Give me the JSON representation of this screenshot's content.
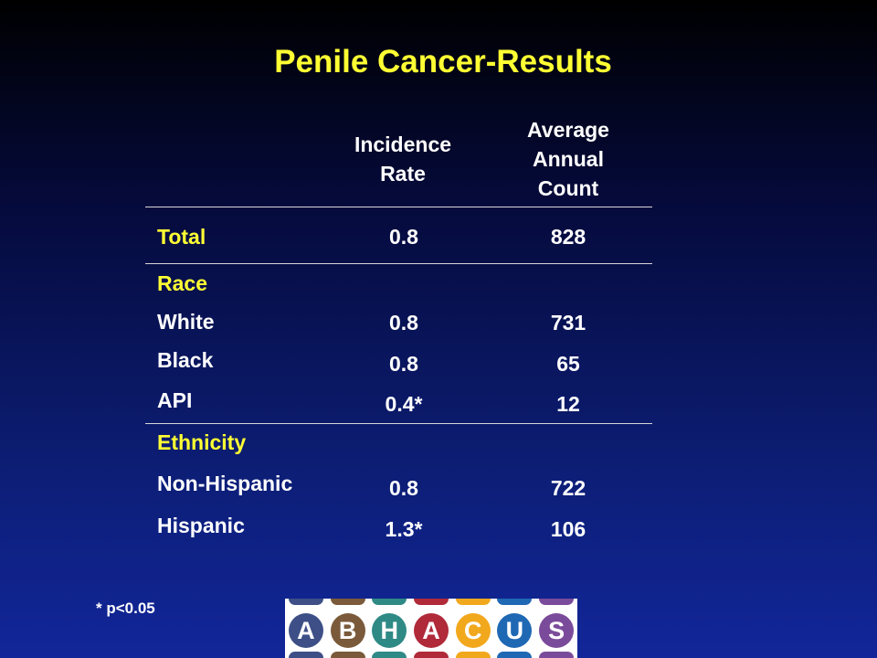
{
  "title": "Penile Cancer-Results",
  "columns": {
    "incidence_line1": "Incidence",
    "incidence_line2": "Rate",
    "count_line1": "Average",
    "count_line2": "Annual",
    "count_line3": "Count"
  },
  "total": {
    "label": "Total",
    "rate": "0.8",
    "count": "828"
  },
  "race": {
    "heading": "Race",
    "rows": [
      {
        "label": "White",
        "rate": "0.8",
        "count": "731"
      },
      {
        "label": "Black",
        "rate": "0.8",
        "count": "65"
      },
      {
        "label": "API",
        "rate": "0.4*",
        "count": "12"
      }
    ]
  },
  "ethnicity": {
    "heading": "Ethnicity",
    "rows": [
      {
        "label": "Non-Hispanic",
        "rate": "0.8",
        "count": "722"
      },
      {
        "label": "Hispanic",
        "rate": "1.3*",
        "count": "106"
      }
    ]
  },
  "footnote": "* p<0.05",
  "logo": {
    "letters": [
      "A",
      "B",
      "H",
      "A",
      "C",
      "U",
      "S"
    ],
    "colors": [
      "#3d4f86",
      "#7a5a3a",
      "#2f8a86",
      "#b02a3a",
      "#f2a81d",
      "#1f68b4",
      "#7b4b9b"
    ]
  }
}
